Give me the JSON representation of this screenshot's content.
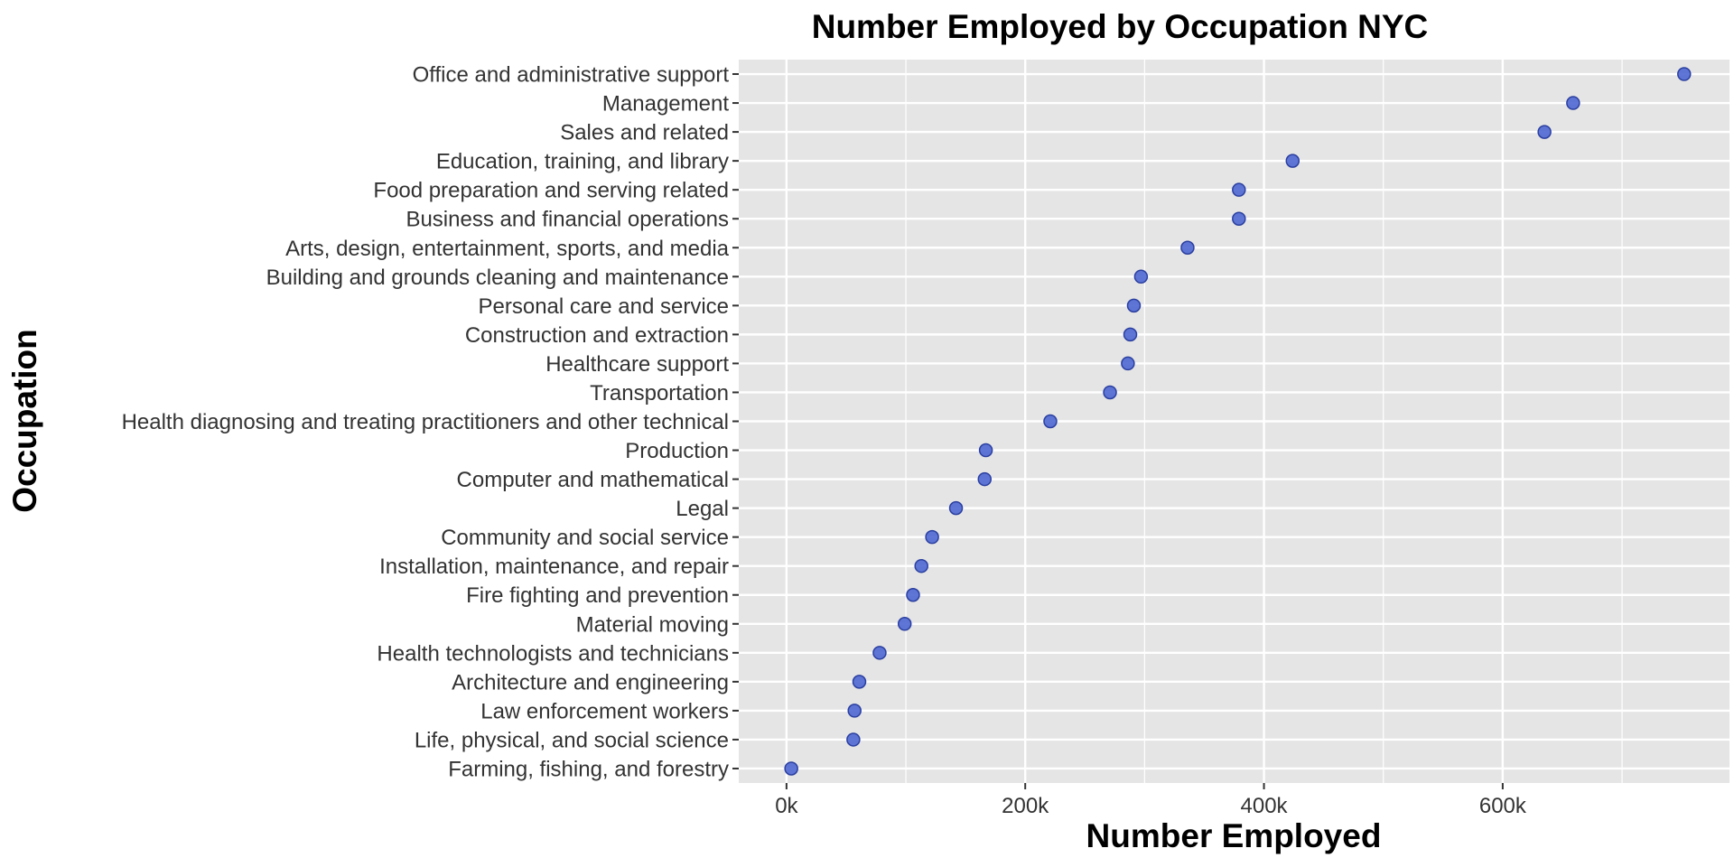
{
  "chart_data": {
    "type": "scatter",
    "title": "Number Employed by Occupation NYC",
    "xlabel": "Number Employed",
    "ylabel": "Occupation",
    "xlim": [
      -40000,
      790000
    ],
    "x_ticks": [
      {
        "value": 0,
        "label": "0k"
      },
      {
        "value": 200000,
        "label": "200k"
      },
      {
        "value": 400000,
        "label": "400k"
      },
      {
        "value": 600000,
        "label": "600k"
      }
    ],
    "x_minor_ticks": [
      100000,
      300000,
      500000,
      700000
    ],
    "grid": true,
    "point_color": "#4F67D3",
    "point_stroke": "#2A3FA0",
    "panel_color": "#E5E5E5",
    "grid_color": "#FFFFFF",
    "categories": [
      "Office and administrative support",
      "Management",
      "Sales and related",
      "Education, training, and library",
      "Food preparation and serving related",
      "Business and financial operations",
      "Arts, design, entertainment, sports, and media",
      "Building and grounds cleaning and maintenance",
      "Personal care and service",
      "Construction and extraction",
      "Healthcare support",
      "Transportation",
      "Health diagnosing and treating practitioners and other technical",
      "Production",
      "Computer and mathematical",
      "Legal",
      "Community and social service",
      "Installation, maintenance, and repair",
      "Fire fighting and prevention",
      "Material moving",
      "Health technologists and technicians",
      "Architecture and engineering",
      "Law enforcement workers",
      "Life, physical, and social science",
      "Farming, fishing, and forestry"
    ],
    "values": [
      752000,
      659000,
      635000,
      424000,
      379000,
      379000,
      336000,
      297000,
      291000,
      288000,
      286000,
      271000,
      221000,
      167000,
      166000,
      142000,
      122000,
      113000,
      106000,
      99000,
      78000,
      61000,
      57000,
      56000,
      4000
    ]
  }
}
